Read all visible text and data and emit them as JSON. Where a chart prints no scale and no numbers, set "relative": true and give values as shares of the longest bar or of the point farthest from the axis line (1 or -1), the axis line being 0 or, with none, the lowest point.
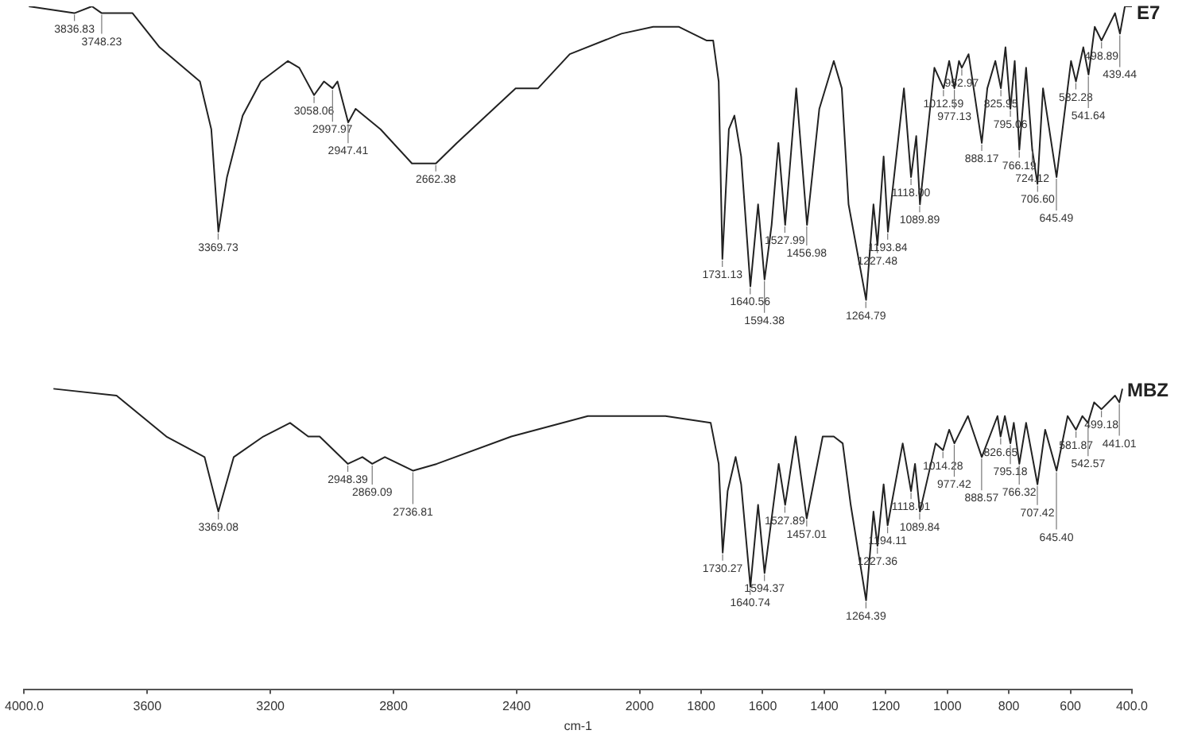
{
  "chart_data": {
    "type": "line",
    "relative": true,
    "xlabel": "cm-1",
    "xlim": [
      4000,
      400
    ],
    "xticks": [
      {
        "value": 4000,
        "label": "4000.0"
      },
      3600,
      3200,
      2800,
      2400,
      2000,
      1800,
      1600,
      1400,
      1200,
      1000,
      800,
      600,
      {
        "value": 400,
        "label": "400.0"
      }
    ],
    "legend": false,
    "series": [
      {
        "name": "E7",
        "color": "#222222",
        "x": [
          3985,
          3837,
          3780,
          3748,
          3692,
          3648,
          3560,
          3429,
          3392,
          3369,
          3341,
          3290,
          3231,
          3143,
          3106,
          3058,
          3026,
          2998,
          2982,
          2947,
          2923,
          2842,
          2740,
          2662,
          2594,
          2403,
          2330,
          2227,
          2059,
          1956,
          1872,
          1783,
          1761,
          1743,
          1731,
          1710,
          1692,
          1670,
          1640,
          1615,
          1594,
          1571,
          1549,
          1527,
          1491,
          1456,
          1416,
          1369,
          1343,
          1321,
          1264,
          1240,
          1227,
          1207,
          1193,
          1141,
          1118,
          1101,
          1089,
          1042,
          1012,
          994,
          977,
          962,
          953,
          931,
          888,
          870,
          844,
          826,
          811,
          795,
          781,
          766,
          744,
          724,
          707,
          689,
          645,
          598,
          582,
          558,
          541,
          521,
          499,
          455,
          439,
          423,
          400
        ],
        "values": [
          1.0,
          0.99,
          1.0,
          0.99,
          0.99,
          0.99,
          0.94,
          0.89,
          0.82,
          0.67,
          0.75,
          0.84,
          0.89,
          0.92,
          0.91,
          0.87,
          0.89,
          0.88,
          0.89,
          0.83,
          0.85,
          0.82,
          0.77,
          0.77,
          0.8,
          0.88,
          0.88,
          0.93,
          0.96,
          0.97,
          0.97,
          0.95,
          0.95,
          0.89,
          0.63,
          0.82,
          0.84,
          0.78,
          0.59,
          0.71,
          0.6,
          0.68,
          0.8,
          0.68,
          0.88,
          0.68,
          0.85,
          0.92,
          0.88,
          0.71,
          0.57,
          0.71,
          0.65,
          0.78,
          0.67,
          0.88,
          0.75,
          0.81,
          0.71,
          0.91,
          0.88,
          0.92,
          0.88,
          0.92,
          0.91,
          0.93,
          0.8,
          0.88,
          0.92,
          0.88,
          0.94,
          0.85,
          0.92,
          0.79,
          0.91,
          0.79,
          0.74,
          0.88,
          0.75,
          0.92,
          0.89,
          0.94,
          0.9,
          0.97,
          0.95,
          0.99,
          0.96,
          1.0,
          1.0
        ]
      },
      {
        "name": "MBZ",
        "color": "#222222",
        "x": [
          3905,
          3700,
          3538,
          3414,
          3369,
          3319,
          3223,
          3136,
          3077,
          3040,
          2948,
          2901,
          2869,
          2828,
          2736,
          2659,
          2417,
          2168,
          1916,
          1769,
          1743,
          1730,
          1714,
          1688,
          1670,
          1640,
          1615,
          1594,
          1548,
          1527,
          1493,
          1457,
          1405,
          1369,
          1340,
          1314,
          1264,
          1240,
          1227,
          1207,
          1194,
          1145,
          1118,
          1105,
          1089,
          1038,
          1014,
          994,
          977,
          933,
          888,
          837,
          827,
          813,
          795,
          784,
          766,
          744,
          707,
          682,
          645,
          609,
          582,
          561,
          543,
          523,
          499,
          455,
          441,
          431
        ],
        "values": [
          0.44,
          0.43,
          0.37,
          0.34,
          0.26,
          0.34,
          0.37,
          0.39,
          0.37,
          0.37,
          0.33,
          0.34,
          0.33,
          0.34,
          0.32,
          0.33,
          0.37,
          0.4,
          0.4,
          0.39,
          0.33,
          0.2,
          0.29,
          0.34,
          0.3,
          0.15,
          0.27,
          0.17,
          0.33,
          0.27,
          0.37,
          0.25,
          0.37,
          0.37,
          0.36,
          0.27,
          0.13,
          0.26,
          0.21,
          0.3,
          0.24,
          0.36,
          0.29,
          0.33,
          0.26,
          0.36,
          0.35,
          0.38,
          0.36,
          0.4,
          0.34,
          0.4,
          0.37,
          0.4,
          0.36,
          0.39,
          0.33,
          0.39,
          0.3,
          0.38,
          0.32,
          0.4,
          0.38,
          0.4,
          0.39,
          0.42,
          0.41,
          0.43,
          0.42,
          0.44
        ]
      }
    ],
    "annotations": [
      {
        "text": "3836.83",
        "x": 3836.83,
        "y": 0.99
      },
      {
        "text": "3748.23",
        "x": 3748.23,
        "y": 0.99
      },
      {
        "text": "3369.73",
        "x": 3369.73,
        "y": 0.67
      },
      {
        "text": "3058.06",
        "x": 3058.06,
        "y": 0.87
      },
      {
        "text": "2997.97",
        "x": 2997.97,
        "y": 0.88
      },
      {
        "text": "2947.41",
        "x": 2947.41,
        "y": 0.83
      },
      {
        "text": "2662.38",
        "x": 2662.38,
        "y": 0.77
      },
      {
        "text": "1731.13",
        "x": 1731.13,
        "y": 0.63
      },
      {
        "text": "1640.56",
        "x": 1640.56,
        "y": 0.59
      },
      {
        "text": "1594.38",
        "x": 1594.38,
        "y": 0.6
      },
      {
        "text": "1527.99",
        "x": 1527.99,
        "y": 0.68
      },
      {
        "text": "1456.98",
        "x": 1456.98,
        "y": 0.68
      },
      {
        "text": "1264.79",
        "x": 1264.79,
        "y": 0.57
      },
      {
        "text": "1227.48",
        "x": 1227.48,
        "y": 0.65
      },
      {
        "text": "1193.84",
        "x": 1193.84,
        "y": 0.67
      },
      {
        "text": "1118.00",
        "x": 1118.0,
        "y": 0.75
      },
      {
        "text": "1089.89",
        "x": 1089.89,
        "y": 0.71
      },
      {
        "text": "1012.59",
        "x": 1012.59,
        "y": 0.88
      },
      {
        "text": "977.13",
        "x": 977.13,
        "y": 0.88
      },
      {
        "text": "952.97",
        "x": 952.97,
        "y": 0.91
      },
      {
        "text": "888.17",
        "x": 888.17,
        "y": 0.8
      },
      {
        "text": "825.95",
        "x": 825.95,
        "y": 0.88
      },
      {
        "text": "795.06",
        "x": 795.06,
        "y": 0.85
      },
      {
        "text": "766.19",
        "x": 766.19,
        "y": 0.79
      },
      {
        "text": "724.12",
        "x": 724.12,
        "y": 0.79
      },
      {
        "text": "706.60",
        "x": 706.6,
        "y": 0.74
      },
      {
        "text": "645.49",
        "x": 645.49,
        "y": 0.75
      },
      {
        "text": "582.28",
        "x": 582.28,
        "y": 0.89
      },
      {
        "text": "541.64",
        "x": 541.64,
        "y": 0.9
      },
      {
        "text": "498.89",
        "x": 498.89,
        "y": 0.95
      },
      {
        "text": "439.44",
        "x": 439.44,
        "y": 0.96
      },
      {
        "text": "3369.08",
        "x": 3369.08,
        "y": 0.26
      },
      {
        "text": "2948.39",
        "x": 2948.39,
        "y": 0.33
      },
      {
        "text": "2869.09",
        "x": 2869.09,
        "y": 0.33
      },
      {
        "text": "2736.81",
        "x": 2736.81,
        "y": 0.32
      },
      {
        "text": "1730.27",
        "x": 1730.27,
        "y": 0.2
      },
      {
        "text": "1640.74",
        "x": 1640.74,
        "y": 0.15
      },
      {
        "text": "1594.37",
        "x": 1594.37,
        "y": 0.17
      },
      {
        "text": "1527.89",
        "x": 1527.89,
        "y": 0.27
      },
      {
        "text": "1457.01",
        "x": 1457.01,
        "y": 0.25
      },
      {
        "text": "1264.39",
        "x": 1264.39,
        "y": 0.13
      },
      {
        "text": "1227.36",
        "x": 1227.36,
        "y": 0.21
      },
      {
        "text": "1194.11",
        "x": 1194.11,
        "y": 0.24
      },
      {
        "text": "1118.01",
        "x": 1118.01,
        "y": 0.29
      },
      {
        "text": "1089.84",
        "x": 1089.84,
        "y": 0.26
      },
      {
        "text": "1014.28",
        "x": 1014.28,
        "y": 0.35
      },
      {
        "text": "977.42",
        "x": 977.42,
        "y": 0.36
      },
      {
        "text": "888.57",
        "x": 888.57,
        "y": 0.34
      },
      {
        "text": "826.65",
        "x": 826.65,
        "y": 0.37
      },
      {
        "text": "795.18",
        "x": 795.18,
        "y": 0.36
      },
      {
        "text": "766.32",
        "x": 766.32,
        "y": 0.33
      },
      {
        "text": "707.42",
        "x": 707.42,
        "y": 0.3
      },
      {
        "text": "645.40",
        "x": 645.4,
        "y": 0.32
      },
      {
        "text": "581.87",
        "x": 581.87,
        "y": 0.38
      },
      {
        "text": "542.57",
        "x": 542.57,
        "y": 0.39
      },
      {
        "text": "499.18",
        "x": 499.18,
        "y": 0.41
      },
      {
        "text": "441.01",
        "x": 441.01,
        "y": 0.42
      }
    ]
  }
}
